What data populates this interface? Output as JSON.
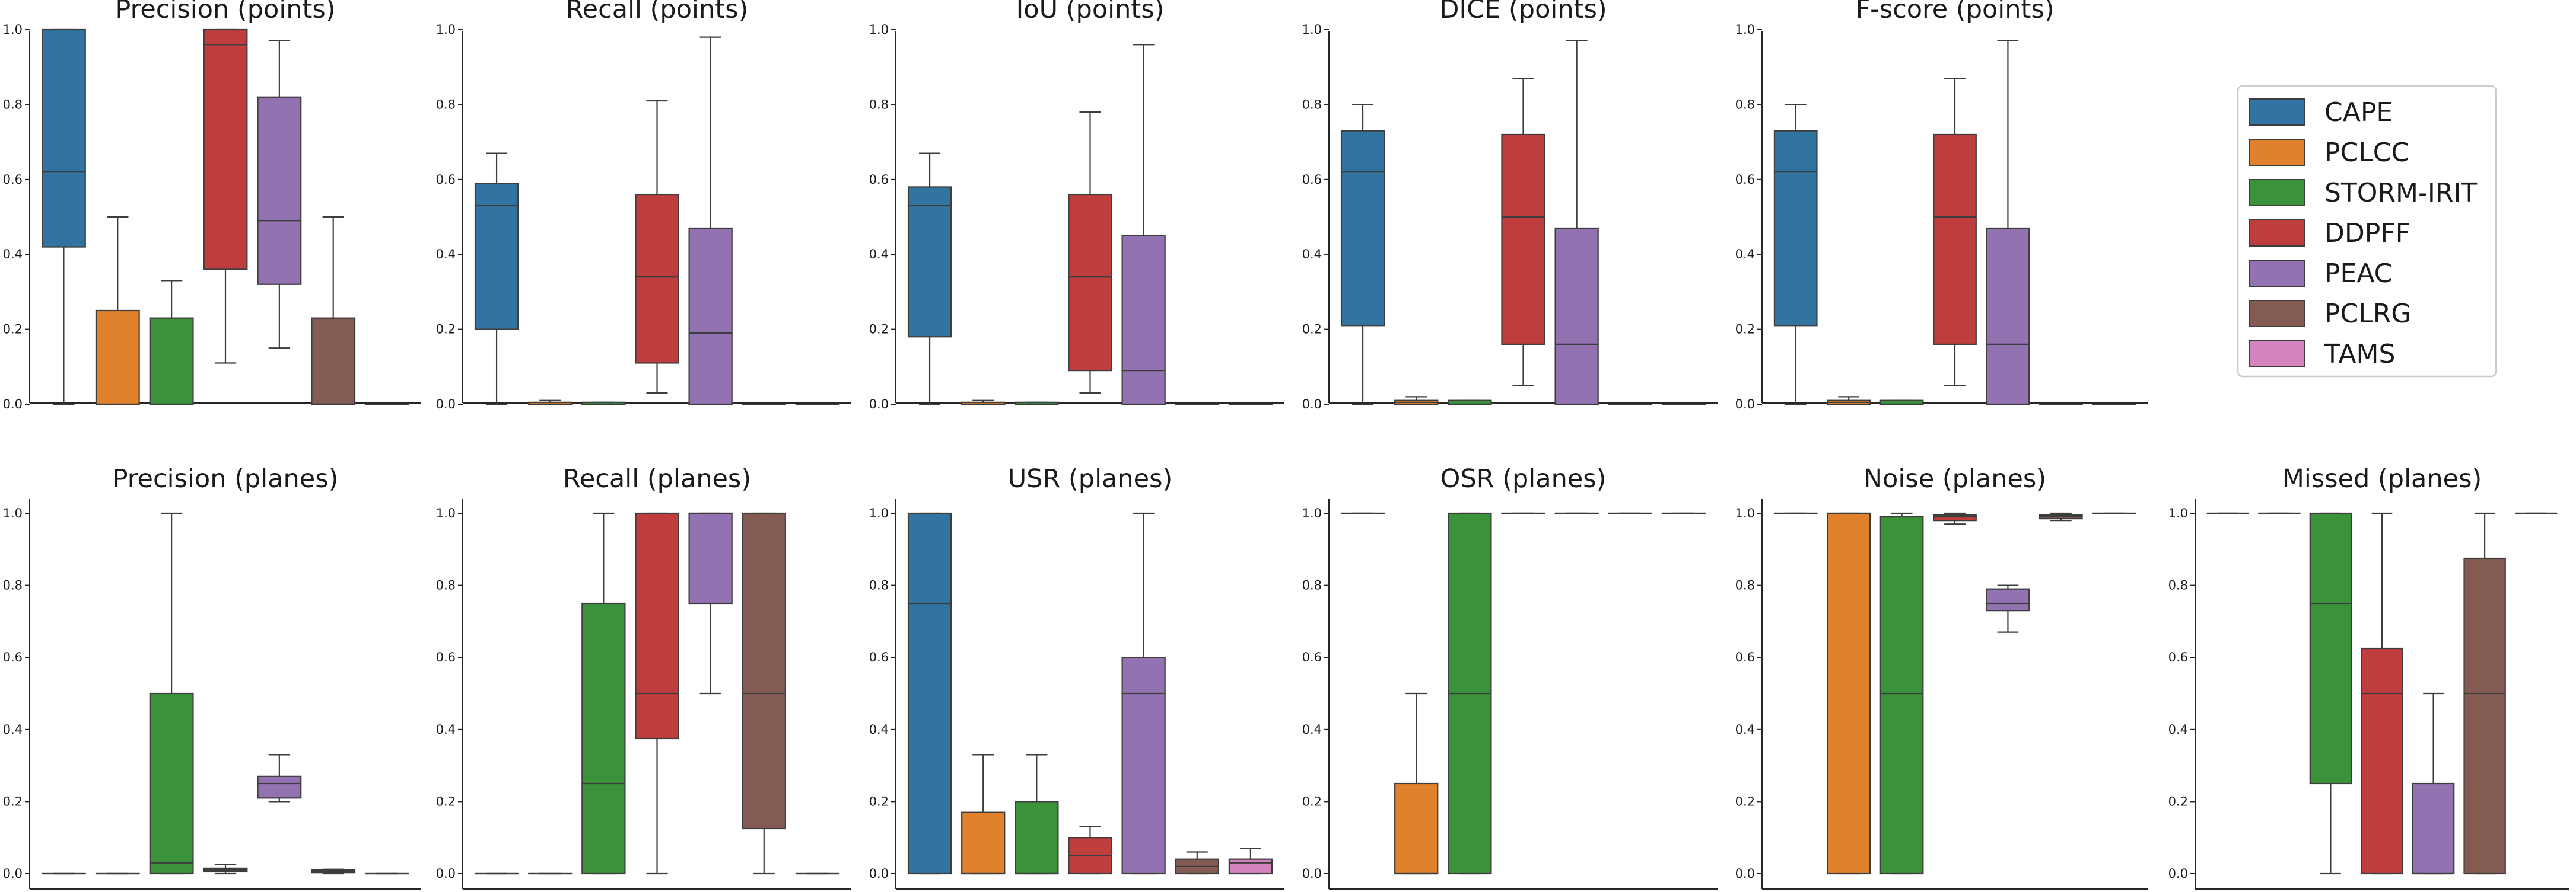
{
  "legend": {
    "position": "right",
    "entries": [
      {
        "label": "CAPE",
        "color": "#3274a1"
      },
      {
        "label": "PCLCC",
        "color": "#e1812c"
      },
      {
        "label": "STORM-IRIT",
        "color": "#3a923a"
      },
      {
        "label": "DDPFF",
        "color": "#c03d3e"
      },
      {
        "label": "PEAC",
        "color": "#9372b2"
      },
      {
        "label": "PCLRG",
        "color": "#845b53"
      },
      {
        "label": "TAMS",
        "color": "#d684bd"
      }
    ]
  },
  "chart_data": [
    {
      "type": "box",
      "title": "Precision (points)",
      "ylim": [
        0,
        1
      ],
      "yticks": [
        "0.0",
        "0.2",
        "0.4",
        "0.6",
        "0.8",
        "1.0"
      ],
      "boxes": [
        {
          "group": "CAPE",
          "whislo": 0.0,
          "q1": 0.42,
          "median": 0.62,
          "q3": 1.0,
          "whishi": 1.0
        },
        {
          "group": "PCLCC",
          "whislo": 0.0,
          "q1": 0.0,
          "median": 0.0,
          "q3": 0.25,
          "whishi": 0.5
        },
        {
          "group": "STORM-IRIT",
          "whislo": 0.0,
          "q1": 0.0,
          "median": 0.0,
          "q3": 0.23,
          "whishi": 0.33
        },
        {
          "group": "DDPFF",
          "whislo": 0.11,
          "q1": 0.36,
          "median": 0.96,
          "q3": 1.0,
          "whishi": 1.0
        },
        {
          "group": "PEAC",
          "whislo": 0.15,
          "q1": 0.32,
          "median": 0.49,
          "q3": 0.82,
          "whishi": 0.97
        },
        {
          "group": "PCLRG",
          "whislo": 0.0,
          "q1": 0.0,
          "median": 0.0,
          "q3": 0.23,
          "whishi": 0.5
        },
        {
          "group": "TAMS",
          "whislo": 0.0,
          "q1": 0.0,
          "median": 0.0,
          "q3": 0.0,
          "whishi": 0.0
        }
      ]
    },
    {
      "type": "box",
      "title": "Recall (points)",
      "ylim": [
        0,
        1
      ],
      "yticks": [
        "0.0",
        "0.2",
        "0.4",
        "0.6",
        "0.8",
        "1.0"
      ],
      "boxes": [
        {
          "group": "CAPE",
          "whislo": 0.0,
          "q1": 0.2,
          "median": 0.53,
          "q3": 0.59,
          "whishi": 0.67
        },
        {
          "group": "PCLCC",
          "whislo": 0.0,
          "q1": 0.0,
          "median": 0.0,
          "q3": 0.005,
          "whishi": 0.01
        },
        {
          "group": "STORM-IRIT",
          "whislo": 0.0,
          "q1": 0.0,
          "median": 0.0,
          "q3": 0.005,
          "whishi": 0.005
        },
        {
          "group": "DDPFF",
          "whislo": 0.03,
          "q1": 0.11,
          "median": 0.34,
          "q3": 0.56,
          "whishi": 0.81
        },
        {
          "group": "PEAC",
          "whislo": 0.0,
          "q1": 0.0,
          "median": 0.19,
          "q3": 0.47,
          "whishi": 0.98
        },
        {
          "group": "PCLRG",
          "whislo": 0.0,
          "q1": 0.0,
          "median": 0.0,
          "q3": 0.0,
          "whishi": 0.0
        },
        {
          "group": "TAMS",
          "whislo": 0.0,
          "q1": 0.0,
          "median": 0.0,
          "q3": 0.0,
          "whishi": 0.0
        }
      ]
    },
    {
      "type": "box",
      "title": "IoU (points)",
      "ylim": [
        0,
        1
      ],
      "yticks": [
        "0.0",
        "0.2",
        "0.4",
        "0.6",
        "0.8",
        "1.0"
      ],
      "boxes": [
        {
          "group": "CAPE",
          "whislo": 0.0,
          "q1": 0.18,
          "median": 0.53,
          "q3": 0.58,
          "whishi": 0.67
        },
        {
          "group": "PCLCC",
          "whislo": 0.0,
          "q1": 0.0,
          "median": 0.0,
          "q3": 0.005,
          "whishi": 0.01
        },
        {
          "group": "STORM-IRIT",
          "whislo": 0.0,
          "q1": 0.0,
          "median": 0.0,
          "q3": 0.005,
          "whishi": 0.005
        },
        {
          "group": "DDPFF",
          "whislo": 0.03,
          "q1": 0.09,
          "median": 0.34,
          "q3": 0.56,
          "whishi": 0.78
        },
        {
          "group": "PEAC",
          "whislo": 0.0,
          "q1": 0.0,
          "median": 0.09,
          "q3": 0.45,
          "whishi": 0.96
        },
        {
          "group": "PCLRG",
          "whislo": 0.0,
          "q1": 0.0,
          "median": 0.0,
          "q3": 0.0,
          "whishi": 0.0
        },
        {
          "group": "TAMS",
          "whislo": 0.0,
          "q1": 0.0,
          "median": 0.0,
          "q3": 0.0,
          "whishi": 0.0
        }
      ]
    },
    {
      "type": "box",
      "title": "DICE (points)",
      "ylim": [
        0,
        1
      ],
      "yticks": [
        "0.0",
        "0.2",
        "0.4",
        "0.6",
        "0.8",
        "1.0"
      ],
      "boxes": [
        {
          "group": "CAPE",
          "whislo": 0.0,
          "q1": 0.21,
          "median": 0.62,
          "q3": 0.73,
          "whishi": 0.8
        },
        {
          "group": "PCLCC",
          "whislo": 0.0,
          "q1": 0.0,
          "median": 0.005,
          "q3": 0.01,
          "whishi": 0.02
        },
        {
          "group": "STORM-IRIT",
          "whislo": 0.0,
          "q1": 0.0,
          "median": 0.0,
          "q3": 0.01,
          "whishi": 0.01
        },
        {
          "group": "DDPFF",
          "whislo": 0.05,
          "q1": 0.16,
          "median": 0.5,
          "q3": 0.72,
          "whishi": 0.87
        },
        {
          "group": "PEAC",
          "whislo": 0.0,
          "q1": 0.0,
          "median": 0.16,
          "q3": 0.47,
          "whishi": 0.97
        },
        {
          "group": "PCLRG",
          "whislo": 0.0,
          "q1": 0.0,
          "median": 0.0,
          "q3": 0.0,
          "whishi": 0.0
        },
        {
          "group": "TAMS",
          "whislo": 0.0,
          "q1": 0.0,
          "median": 0.0,
          "q3": 0.0,
          "whishi": 0.0
        }
      ]
    },
    {
      "type": "box",
      "title": "F-score (points)",
      "ylim": [
        0,
        1
      ],
      "yticks": [
        "0.0",
        "0.2",
        "0.4",
        "0.6",
        "0.8",
        "1.0"
      ],
      "boxes": [
        {
          "group": "CAPE",
          "whislo": 0.0,
          "q1": 0.21,
          "median": 0.62,
          "q3": 0.73,
          "whishi": 0.8
        },
        {
          "group": "PCLCC",
          "whislo": 0.0,
          "q1": 0.0,
          "median": 0.005,
          "q3": 0.01,
          "whishi": 0.02
        },
        {
          "group": "STORM-IRIT",
          "whislo": 0.0,
          "q1": 0.0,
          "median": 0.0,
          "q3": 0.01,
          "whishi": 0.01
        },
        {
          "group": "DDPFF",
          "whislo": 0.05,
          "q1": 0.16,
          "median": 0.5,
          "q3": 0.72,
          "whishi": 0.87
        },
        {
          "group": "PEAC",
          "whislo": 0.0,
          "q1": 0.0,
          "median": 0.16,
          "q3": 0.47,
          "whishi": 0.97
        },
        {
          "group": "PCLRG",
          "whislo": 0.0,
          "q1": 0.0,
          "median": 0.0,
          "q3": 0.0,
          "whishi": 0.0
        },
        {
          "group": "TAMS",
          "whislo": 0.0,
          "q1": 0.0,
          "median": 0.0,
          "q3": 0.0,
          "whishi": 0.0
        }
      ]
    },
    {
      "type": "box",
      "title": "Precision (planes)",
      "ylim": [
        0,
        1
      ],
      "yticks": [
        "0.0",
        "0.2",
        "0.4",
        "0.6",
        "0.8",
        "1.0"
      ],
      "boxes": [
        {
          "group": "CAPE",
          "whislo": 0.0,
          "q1": 0.0,
          "median": 0.0,
          "q3": 0.0,
          "whishi": 0.0
        },
        {
          "group": "PCLCC",
          "whislo": 0.0,
          "q1": 0.0,
          "median": 0.0,
          "q3": 0.0,
          "whishi": 0.0
        },
        {
          "group": "STORM-IRIT",
          "whislo": 0.0,
          "q1": 0.0,
          "median": 0.03,
          "q3": 0.5,
          "whishi": 1.0
        },
        {
          "group": "DDPFF",
          "whislo": 0.0,
          "q1": 0.005,
          "median": 0.01,
          "q3": 0.015,
          "whishi": 0.025
        },
        {
          "group": "PEAC",
          "whislo": 0.2,
          "q1": 0.21,
          "median": 0.25,
          "q3": 0.27,
          "whishi": 0.33
        },
        {
          "group": "PCLRG",
          "whislo": 0.0,
          "q1": 0.003,
          "median": 0.006,
          "q3": 0.01,
          "whishi": 0.012
        },
        {
          "group": "TAMS",
          "whislo": 0.0,
          "q1": 0.0,
          "median": 0.0,
          "q3": 0.0,
          "whishi": 0.0
        }
      ]
    },
    {
      "type": "box",
      "title": "Recall (planes)",
      "ylim": [
        0,
        1
      ],
      "yticks": [
        "0.0",
        "0.2",
        "0.4",
        "0.6",
        "0.8",
        "1.0"
      ],
      "boxes": [
        {
          "group": "CAPE",
          "whislo": 0.0,
          "q1": 0.0,
          "median": 0.0,
          "q3": 0.0,
          "whishi": 0.0
        },
        {
          "group": "PCLCC",
          "whislo": 0.0,
          "q1": 0.0,
          "median": 0.0,
          "q3": 0.0,
          "whishi": 0.0
        },
        {
          "group": "STORM-IRIT",
          "whislo": 0.0,
          "q1": 0.0,
          "median": 0.25,
          "q3": 0.75,
          "whishi": 1.0
        },
        {
          "group": "DDPFF",
          "whislo": 0.0,
          "q1": 0.375,
          "median": 0.5,
          "q3": 1.0,
          "whishi": 1.0
        },
        {
          "group": "PEAC",
          "whislo": 0.5,
          "q1": 0.75,
          "median": 1.0,
          "q3": 1.0,
          "whishi": 1.0
        },
        {
          "group": "PCLRG",
          "whislo": 0.0,
          "q1": 0.125,
          "median": 0.5,
          "q3": 1.0,
          "whishi": 1.0
        },
        {
          "group": "TAMS",
          "whislo": 0.0,
          "q1": 0.0,
          "median": 0.0,
          "q3": 0.0,
          "whishi": 0.0
        }
      ]
    },
    {
      "type": "box",
      "title": "USR (planes)",
      "ylim": [
        0,
        1
      ],
      "yticks": [
        "0.0",
        "0.2",
        "0.4",
        "0.6",
        "0.8",
        "1.0"
      ],
      "boxes": [
        {
          "group": "CAPE",
          "whislo": 0.0,
          "q1": 0.0,
          "median": 0.75,
          "q3": 1.0,
          "whishi": 1.0
        },
        {
          "group": "PCLCC",
          "whislo": 0.0,
          "q1": 0.0,
          "median": 0.0,
          "q3": 0.17,
          "whishi": 0.33
        },
        {
          "group": "STORM-IRIT",
          "whislo": 0.0,
          "q1": 0.0,
          "median": 0.0,
          "q3": 0.2,
          "whishi": 0.33
        },
        {
          "group": "DDPFF",
          "whislo": 0.0,
          "q1": 0.0,
          "median": 0.05,
          "q3": 0.1,
          "whishi": 0.13
        },
        {
          "group": "PEAC",
          "whislo": 0.0,
          "q1": 0.0,
          "median": 0.5,
          "q3": 0.6,
          "whishi": 1.0
        },
        {
          "group": "PCLRG",
          "whislo": 0.0,
          "q1": 0.0,
          "median": 0.02,
          "q3": 0.04,
          "whishi": 0.06
        },
        {
          "group": "TAMS",
          "whislo": 0.0,
          "q1": 0.0,
          "median": 0.03,
          "q3": 0.04,
          "whishi": 0.07
        }
      ]
    },
    {
      "type": "box",
      "title": "OSR (planes)",
      "ylim": [
        0,
        1
      ],
      "yticks": [
        "0.0",
        "0.2",
        "0.4",
        "0.6",
        "0.8",
        "1.0"
      ],
      "boxes": [
        {
          "group": "CAPE",
          "whislo": 1.0,
          "q1": 1.0,
          "median": 1.0,
          "q3": 1.0,
          "whishi": 1.0
        },
        {
          "group": "PCLCC",
          "whislo": 0.0,
          "q1": 0.0,
          "median": 0.0,
          "q3": 0.25,
          "whishi": 0.5
        },
        {
          "group": "STORM-IRIT",
          "whislo": 0.0,
          "q1": 0.0,
          "median": 0.5,
          "q3": 1.0,
          "whishi": 1.0
        },
        {
          "group": "DDPFF",
          "whislo": 1.0,
          "q1": 1.0,
          "median": 1.0,
          "q3": 1.0,
          "whishi": 1.0
        },
        {
          "group": "PEAC",
          "whislo": 1.0,
          "q1": 1.0,
          "median": 1.0,
          "q3": 1.0,
          "whishi": 1.0
        },
        {
          "group": "PCLRG",
          "whislo": 1.0,
          "q1": 1.0,
          "median": 1.0,
          "q3": 1.0,
          "whishi": 1.0
        },
        {
          "group": "TAMS",
          "whislo": 1.0,
          "q1": 1.0,
          "median": 1.0,
          "q3": 1.0,
          "whishi": 1.0
        }
      ]
    },
    {
      "type": "box",
      "title": "Noise (planes)",
      "ylim": [
        0,
        1
      ],
      "yticks": [
        "0.0",
        "0.2",
        "0.4",
        "0.6",
        "0.8",
        "1.0"
      ],
      "boxes": [
        {
          "group": "CAPE",
          "whislo": 1.0,
          "q1": 1.0,
          "median": 1.0,
          "q3": 1.0,
          "whishi": 1.0
        },
        {
          "group": "PCLCC",
          "whislo": 0.0,
          "q1": 0.0,
          "median": 1.0,
          "q3": 1.0,
          "whishi": 1.0
        },
        {
          "group": "STORM-IRIT",
          "whislo": 0.0,
          "q1": 0.0,
          "median": 0.5,
          "q3": 0.99,
          "whishi": 1.0
        },
        {
          "group": "DDPFF",
          "whislo": 0.97,
          "q1": 0.98,
          "median": 0.99,
          "q3": 0.995,
          "whishi": 1.0
        },
        {
          "group": "PEAC",
          "whislo": 0.67,
          "q1": 0.73,
          "median": 0.75,
          "q3": 0.79,
          "whishi": 0.8
        },
        {
          "group": "PCLRG",
          "whislo": 0.98,
          "q1": 0.985,
          "median": 0.99,
          "q3": 0.995,
          "whishi": 1.0
        },
        {
          "group": "TAMS",
          "whislo": 1.0,
          "q1": 1.0,
          "median": 1.0,
          "q3": 1.0,
          "whishi": 1.0
        }
      ]
    },
    {
      "type": "box",
      "title": "Missed (planes)",
      "ylim": [
        0,
        1
      ],
      "yticks": [
        "0.0",
        "0.2",
        "0.4",
        "0.6",
        "0.8",
        "1.0"
      ],
      "boxes": [
        {
          "group": "CAPE",
          "whislo": 1.0,
          "q1": 1.0,
          "median": 1.0,
          "q3": 1.0,
          "whishi": 1.0
        },
        {
          "group": "PCLCC",
          "whislo": 1.0,
          "q1": 1.0,
          "median": 1.0,
          "q3": 1.0,
          "whishi": 1.0
        },
        {
          "group": "STORM-IRIT",
          "whislo": 0.0,
          "q1": 0.25,
          "median": 0.75,
          "q3": 1.0,
          "whishi": 1.0
        },
        {
          "group": "DDPFF",
          "whislo": 0.0,
          "q1": 0.0,
          "median": 0.5,
          "q3": 0.625,
          "whishi": 1.0
        },
        {
          "group": "PEAC",
          "whislo": 0.0,
          "q1": 0.0,
          "median": 0.0,
          "q3": 0.25,
          "whishi": 0.5
        },
        {
          "group": "PCLRG",
          "whislo": 0.0,
          "q1": 0.0,
          "median": 0.5,
          "q3": 0.875,
          "whishi": 1.0
        },
        {
          "group": "TAMS",
          "whislo": 1.0,
          "q1": 1.0,
          "median": 1.0,
          "q3": 1.0,
          "whishi": 1.0
        }
      ]
    }
  ]
}
